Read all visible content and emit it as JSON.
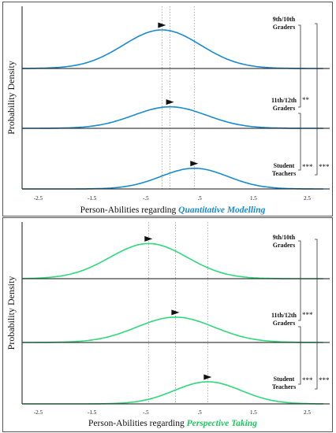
{
  "chart_data": [
    {
      "type": "line",
      "ylabel": "Probability Density",
      "xlabel_prefix": "Person-Abilities regarding ",
      "xlabel_em": "Quantitative Modelling",
      "series_color": "#1a8ad0",
      "accent_color": "#1a8ad0",
      "xlim": [
        -2.8,
        2.8
      ],
      "x_ticks": [
        -2.5,
        -1.5,
        -0.5,
        0.5,
        1.5,
        2.5
      ],
      "x_tick_labels": [
        "-2.5",
        "-1.5",
        "-.5",
        ".5",
        "1.5",
        "2.5"
      ],
      "groups": [
        {
          "label_lines": [
            "9th/10th",
            "Graders"
          ],
          "mean": -0.2,
          "sd": 0.72,
          "peak": 1.0
        },
        {
          "label_lines": [
            "11th/12th",
            "Graders"
          ],
          "mean": -0.05,
          "sd": 0.68,
          "peak": 0.58
        },
        {
          "label_lines": [
            "Student",
            "Teachers"
          ],
          "mean": 0.4,
          "sd": 0.62,
          "peak": 0.55
        }
      ],
      "significance": [
        {
          "pair": [
            0,
            1
          ],
          "label": "**"
        },
        {
          "pair": [
            1,
            2
          ],
          "label": "***"
        },
        {
          "pair": [
            0,
            2
          ],
          "label": "***"
        }
      ]
    },
    {
      "type": "line",
      "ylabel": "Probability Density",
      "xlabel_prefix": "Person-Abilities regarding ",
      "xlabel_em": "Perspective Taking",
      "series_color": "#2fd97a",
      "accent_color": "#22c463",
      "xlim": [
        -2.8,
        2.8
      ],
      "x_ticks": [
        -2.5,
        -1.5,
        -0.5,
        0.5,
        1.5,
        2.5
      ],
      "x_tick_labels": [
        "-2.5",
        "-1.5",
        "-.5",
        ".5",
        "1.5",
        "2.5"
      ],
      "groups": [
        {
          "label_lines": [
            "9th/10th",
            "Graders"
          ],
          "mean": -0.45,
          "sd": 0.72,
          "peak": 1.0
        },
        {
          "label_lines": [
            "11th/12th",
            "Graders"
          ],
          "mean": 0.05,
          "sd": 0.72,
          "peak": 0.64
        },
        {
          "label_lines": [
            "Student",
            "Teachers"
          ],
          "mean": 0.65,
          "sd": 0.62,
          "peak": 0.58
        }
      ],
      "significance": [
        {
          "pair": [
            0,
            1
          ],
          "label": "***"
        },
        {
          "pair": [
            1,
            2
          ],
          "label": "***"
        },
        {
          "pair": [
            0,
            2
          ],
          "label": "***"
        }
      ]
    }
  ]
}
